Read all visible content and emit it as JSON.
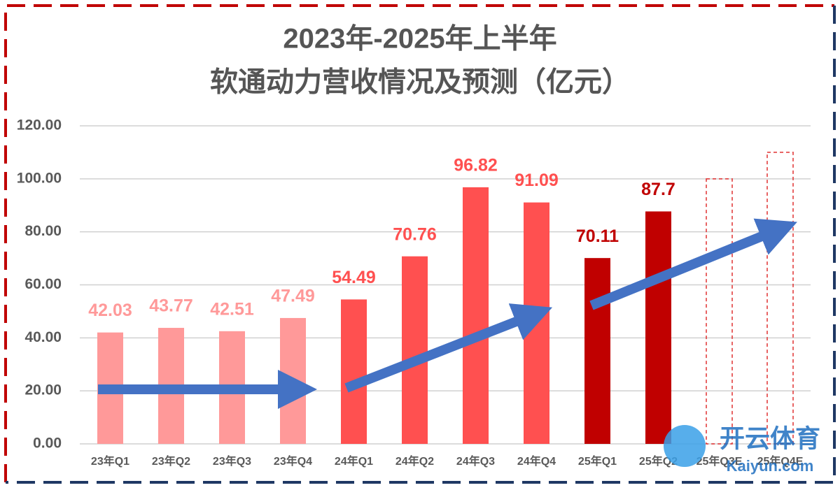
{
  "chart_data": {
    "type": "bar",
    "title": [
      "2023年-2025年上半年",
      "软通动力营收情况及预测（亿元）"
    ],
    "categories": [
      "23年Q1",
      "23年Q2",
      "23年Q3",
      "23年Q4",
      "24年Q1",
      "24年Q2",
      "24年Q3",
      "24年Q4",
      "25年Q1",
      "25年Q2",
      "25年Q3E",
      "25年Q4E"
    ],
    "values": [
      42.03,
      43.77,
      42.51,
      47.49,
      54.49,
      70.76,
      96.82,
      91.09,
      70.11,
      87.7,
      100,
      110
    ],
    "colors": [
      "#ff9999",
      "#ff9999",
      "#ff9999",
      "#ff9999",
      "#ff5050",
      "#ff5050",
      "#ff5050",
      "#ff5050",
      "#c00000",
      "#c00000",
      "#e03030",
      "#e03030"
    ],
    "dashed": [
      false,
      false,
      false,
      false,
      false,
      false,
      false,
      false,
      false,
      false,
      true,
      true
    ],
    "value_labels": [
      "42.03",
      "43.77",
      "42.51",
      "47.49",
      "54.49",
      "70.76",
      "96.82",
      "91.09",
      "70.11",
      "87.7",
      null,
      null
    ],
    "ylim": [
      0,
      120
    ],
    "yticks": [
      {
        "value": 0,
        "label": "0.00"
      },
      {
        "value": 20,
        "label": "20.00"
      },
      {
        "value": 40,
        "label": "40.00"
      },
      {
        "value": 60,
        "label": "60.00"
      },
      {
        "value": 80,
        "label": "80.00"
      },
      {
        "value": 100,
        "label": "100.00"
      },
      {
        "value": 120,
        "label": "120.00"
      }
    ],
    "grid": true,
    "watermark": [
      "开云体育",
      "Kaiyun.com"
    ]
  }
}
